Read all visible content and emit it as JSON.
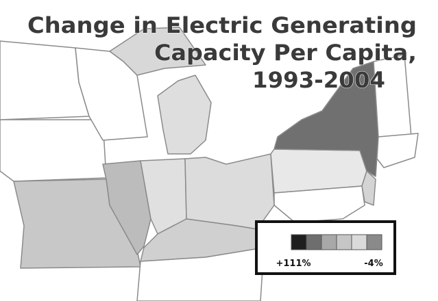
{
  "title": [
    "Change in Electric Generating",
    "Capacity Per Capita,",
    "1993-2004"
  ],
  "legend": {
    "colors": [
      "#1e1e1e",
      "#6e6e6e",
      "#a8a8a8",
      "#c6c6c6",
      "#dadada",
      "#8a8a8a"
    ],
    "labels": [
      "+111%",
      "-4%"
    ]
  }
}
